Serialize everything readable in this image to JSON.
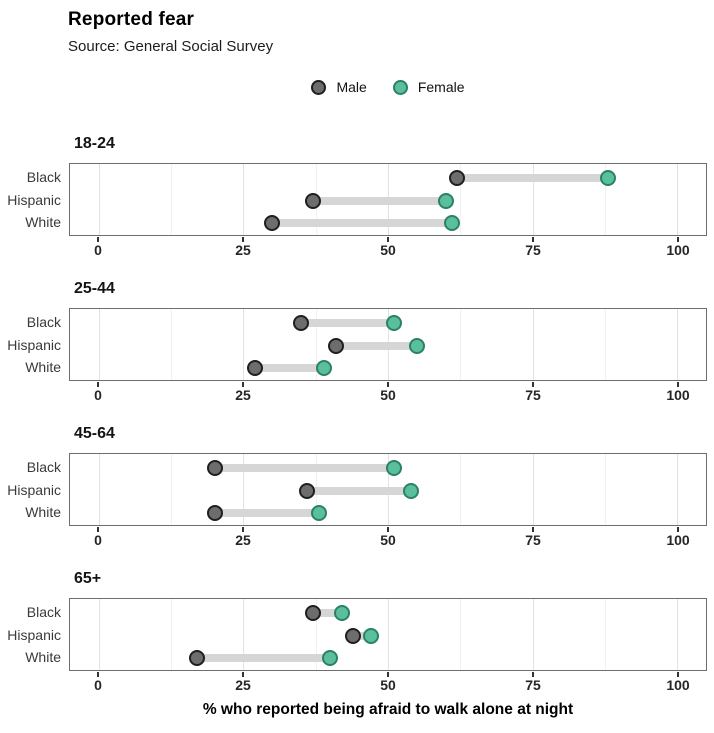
{
  "header": {
    "title": "Reported fear",
    "subtitle": "Source: General Social Survey"
  },
  "legend": {
    "items": [
      {
        "label": "Male",
        "fill": "#6d6d6d",
        "stroke": "#1f1f1f"
      },
      {
        "label": "Female",
        "fill": "#59bf9f",
        "stroke": "#2c8165"
      }
    ]
  },
  "chart_data": {
    "type": "dumbbell",
    "title": "Reported fear",
    "subtitle": "Source: General Social Survey",
    "xlabel": "% who reported being afraid to walk alone at night",
    "ylabel": "",
    "xlim": [
      -5,
      105
    ],
    "x_major_ticks": [
      0,
      25,
      50,
      75,
      100
    ],
    "x_minor_gridlines": [
      12.5,
      37.5,
      62.5,
      87.5
    ],
    "grid": "vertical-only",
    "legend_position": "top-center",
    "categories": [
      "Black",
      "Hispanic",
      "White"
    ],
    "series_names": [
      "Male",
      "Female"
    ],
    "facets": [
      {
        "label": "18-24",
        "rows": [
          {
            "category": "Black",
            "male": 62,
            "female": 88
          },
          {
            "category": "Hispanic",
            "male": 37,
            "female": 60
          },
          {
            "category": "White",
            "male": 30,
            "female": 61
          }
        ]
      },
      {
        "label": "25-44",
        "rows": [
          {
            "category": "Black",
            "male": 35,
            "female": 51
          },
          {
            "category": "Hispanic",
            "male": 41,
            "female": 55
          },
          {
            "category": "White",
            "male": 27,
            "female": 39
          }
        ]
      },
      {
        "label": "45-64",
        "rows": [
          {
            "category": "Black",
            "male": 20,
            "female": 51
          },
          {
            "category": "Hispanic",
            "male": 36,
            "female": 54
          },
          {
            "category": "White",
            "male": 20,
            "female": 38
          }
        ]
      },
      {
        "label": "65+",
        "rows": [
          {
            "category": "Black",
            "male": 37,
            "female": 42
          },
          {
            "category": "Hispanic",
            "male": 44,
            "female": 47
          },
          {
            "category": "White",
            "male": 17,
            "female": 40
          }
        ]
      }
    ],
    "colors": {
      "male_fill": "#6d6d6d",
      "male_stroke": "#1f1f1f",
      "female_fill": "#59bf9f",
      "female_stroke": "#2c8165",
      "segment": "#d6d6d6",
      "grid_major": "#e2e2e2",
      "grid_minor": "#f1f1f1",
      "panel_border": "#6e6e6e"
    }
  }
}
